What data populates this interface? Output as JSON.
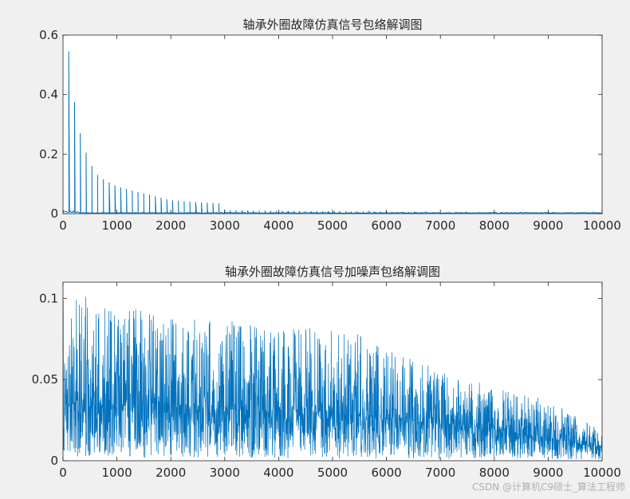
{
  "watermark": "CSDN @计算机C9硕士_算法工程师",
  "colors": {
    "line": "#0072BD",
    "axes_bg": "#ffffff",
    "figure_bg": "#f0f0f0",
    "axis": "#262626"
  },
  "chart_data": [
    {
      "type": "line",
      "title": "轴承外圈故障仿真信号包络解调图",
      "xlabel": "",
      "ylabel": "",
      "xlim": [
        0,
        10000
      ],
      "ylim": [
        0,
        0.6
      ],
      "xticks": [
        "0",
        "1000",
        "2000",
        "3000",
        "4000",
        "5000",
        "6000",
        "7000",
        "8000",
        "9000",
        "10000"
      ],
      "yticks": [
        "0",
        "0.2",
        "0.4",
        "0.6"
      ],
      "grid": false,
      "series": [
        {
          "style": "harmonic-spectrum",
          "fundamental_hz": 107,
          "peaks": [
            {
              "x": 107,
              "y": 0.545
            },
            {
              "x": 214,
              "y": 0.375
            },
            {
              "x": 321,
              "y": 0.27
            },
            {
              "x": 428,
              "y": 0.205
            },
            {
              "x": 535,
              "y": 0.16
            },
            {
              "x": 642,
              "y": 0.13
            },
            {
              "x": 749,
              "y": 0.115
            },
            {
              "x": 856,
              "y": 0.105
            },
            {
              "x": 963,
              "y": 0.095
            },
            {
              "x": 1070,
              "y": 0.088
            },
            {
              "x": 1500,
              "y": 0.068
            },
            {
              "x": 2000,
              "y": 0.045
            },
            {
              "x": 2500,
              "y": 0.038
            },
            {
              "x": 2900,
              "y": 0.035
            },
            {
              "x": 3000,
              "y": 0.012
            },
            {
              "x": 4000,
              "y": 0.009
            },
            {
              "x": 5000,
              "y": 0.008
            },
            {
              "x": 6000,
              "y": 0.006
            },
            {
              "x": 7000,
              "y": 0.004
            },
            {
              "x": 8000,
              "y": 0.003
            },
            {
              "x": 9000,
              "y": 0.003
            },
            {
              "x": 10000,
              "y": 0.004
            }
          ]
        }
      ]
    },
    {
      "type": "line",
      "title": "轴承外圈故障仿真信号加噪声包络解调图",
      "xlabel": "",
      "ylabel": "",
      "xlim": [
        0,
        10000
      ],
      "ylim": [
        0,
        0.11
      ],
      "xticks": [
        "0",
        "1000",
        "2000",
        "3000",
        "4000",
        "5000",
        "6000",
        "7000",
        "8000",
        "9000",
        "10000"
      ],
      "yticks": [
        "0",
        "0.05",
        "0.1"
      ],
      "grid": false,
      "series": [
        {
          "style": "noisy-spectrum",
          "envelope": [
            {
              "x": 0,
              "y": 0.11
            },
            {
              "x": 500,
              "y": 0.1
            },
            {
              "x": 1000,
              "y": 0.095
            },
            {
              "x": 2000,
              "y": 0.09
            },
            {
              "x": 3000,
              "y": 0.088
            },
            {
              "x": 4000,
              "y": 0.082
            },
            {
              "x": 5000,
              "y": 0.085
            },
            {
              "x": 6000,
              "y": 0.07
            },
            {
              "x": 7000,
              "y": 0.056
            },
            {
              "x": 8000,
              "y": 0.045
            },
            {
              "x": 9000,
              "y": 0.038
            },
            {
              "x": 10000,
              "y": 0.018
            }
          ],
          "baseline": [
            {
              "x": 0,
              "y": 0.035
            },
            {
              "x": 2000,
              "y": 0.034
            },
            {
              "x": 4000,
              "y": 0.032
            },
            {
              "x": 6000,
              "y": 0.026
            },
            {
              "x": 8000,
              "y": 0.02
            },
            {
              "x": 10000,
              "y": 0.008
            }
          ]
        }
      ]
    }
  ]
}
